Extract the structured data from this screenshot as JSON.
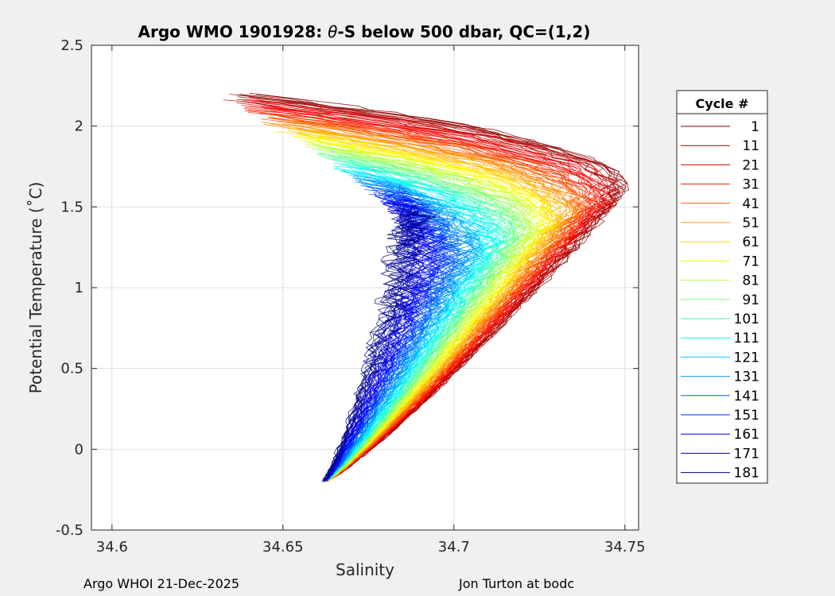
{
  "chart_data": {
    "type": "line",
    "title_prefix": "Argo WMO 1901928: ",
    "title_theta": "θ",
    "title_suffix": "-S below 500 dbar,  QC=(1,2)",
    "xlabel": "Salinity",
    "ylabel": "Potential Temperature (˚C)",
    "xlim": [
      34.594,
      34.754
    ],
    "ylim": [
      -0.5,
      2.5
    ],
    "xticks": [
      34.6,
      34.65,
      34.7,
      34.75
    ],
    "xtick_labels": [
      "34.6",
      "34.65",
      "34.7",
      "34.75"
    ],
    "yticks": [
      -0.5,
      0,
      0.5,
      1,
      1.5,
      2,
      2.5
    ],
    "ytick_labels": [
      "-0.5",
      "0",
      "0.5",
      "1",
      "1.5",
      "2",
      "2.5"
    ],
    "grid": true,
    "legend_title": "Cycle #",
    "legend_position": "right",
    "series": [
      {
        "name": "1",
        "color": "#800000"
      },
      {
        "name": "11",
        "color": "#a80000"
      },
      {
        "name": "21",
        "color": "#d40000"
      },
      {
        "name": "31",
        "color": "#ff1a00"
      },
      {
        "name": "41",
        "color": "#ff5a00"
      },
      {
        "name": "51",
        "color": "#ff9a00"
      },
      {
        "name": "61",
        "color": "#ffd200"
      },
      {
        "name": "71",
        "color": "#f4ff00"
      },
      {
        "name": "81",
        "color": "#b4ff40"
      },
      {
        "name": "91",
        "color": "#7aff7a"
      },
      {
        "name": "101",
        "color": "#40ffb4"
      },
      {
        "name": "111",
        "color": "#00ffee"
      },
      {
        "name": "121",
        "color": "#00d0ff"
      },
      {
        "name": "131",
        "color": "#0098ff"
      },
      {
        "name": "141",
        "color": "#0060ff"
      },
      {
        "name": "151",
        "color": "#0028ff"
      },
      {
        "name": "161",
        "color": "#0000e4"
      },
      {
        "name": "171",
        "color": "#0000b4"
      },
      {
        "name": "181",
        "color": "#000080"
      }
    ]
  },
  "footer": {
    "left": "Argo WHOI 21-Dec-2025",
    "right": "Jon Turton at bodc"
  }
}
